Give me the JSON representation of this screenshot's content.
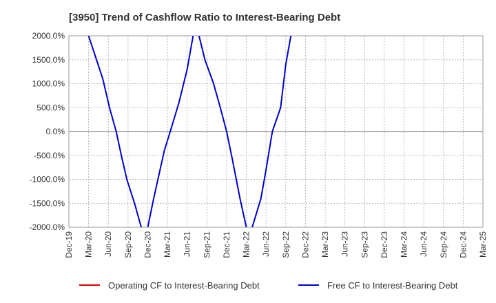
{
  "chart_data": {
    "type": "line",
    "title": "[3950]  Trend of Cashflow Ratio to Interest-Bearing Debt",
    "xlabel": "",
    "ylabel": "",
    "ylim": [
      -2000,
      2000
    ],
    "y_ticks": [
      2000,
      1500,
      1000,
      500,
      0,
      -500,
      -1000,
      -1500,
      -2000
    ],
    "y_tick_labels": [
      "2000.0%",
      "1500.0%",
      "1000.0%",
      "500.0%",
      "0.0%",
      "-500.0%",
      "-1000.0%",
      "-1500.0%",
      "-2000.0%"
    ],
    "x_tick_labels": [
      "Dec-19",
      "Mar-20",
      "Jun-20",
      "Sep-20",
      "Dec-20",
      "Mar-21",
      "Jun-21",
      "Sep-21",
      "Dec-21",
      "Mar-22",
      "Jun-22",
      "Sep-22",
      "Dec-22",
      "Mar-23",
      "Jun-23",
      "Sep-23",
      "Dec-23",
      "Mar-24",
      "Jun-24",
      "Sep-24",
      "Dec-24",
      "Mar-25"
    ],
    "grid": true,
    "legend_position": "bottom",
    "series": [
      {
        "name": "Operating CF to Interest-Bearing Debt",
        "color": "#e00000",
        "x_index": [],
        "values": []
      },
      {
        "name": "Free CF to Interest-Bearing Debt",
        "color": "#0000cc",
        "x_index": [
          1.0,
          1.4,
          1.72,
          2.06,
          2.4,
          2.66,
          2.94,
          3.33,
          3.67,
          4.0,
          4.3,
          4.84,
          5.14,
          5.58,
          6.0,
          6.3,
          6.6,
          6.9,
          7.34,
          7.68,
          8.0,
          8.3,
          8.68,
          9.0,
          9.3,
          9.74,
          10.0,
          10.32,
          10.74,
          11.0,
          11.26
        ],
        "values": [
          2000,
          1500,
          1100,
          500,
          0,
          -500,
          -1000,
          -1500,
          -2000,
          -2000,
          -1400,
          -400,
          0,
          600,
          1300,
          2000,
          2000,
          1500,
          1000,
          500,
          0,
          -600,
          -1400,
          -2000,
          -2000,
          -1400,
          -800,
          0,
          500,
          1400,
          2000
        ],
        "note": "Series values clipped at axis limits; x_index counts quarters from Dec-19 (0)."
      }
    ]
  }
}
